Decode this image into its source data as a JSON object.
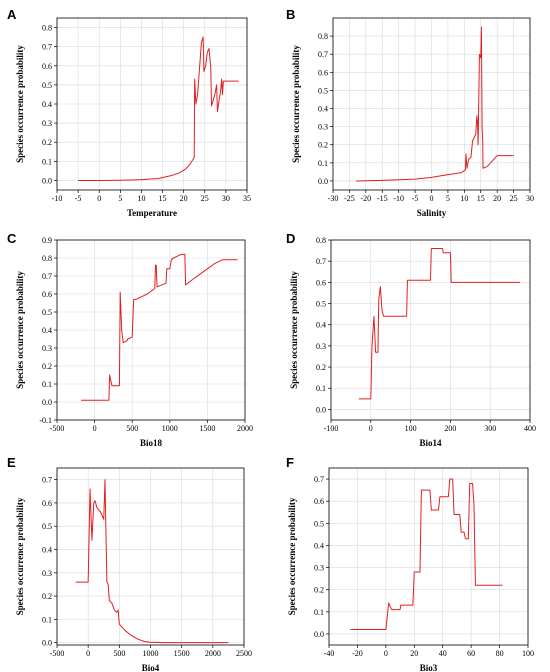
{
  "chart_data": [
    {
      "type": "line",
      "panel": "A",
      "xlabel": "Temperature",
      "ylabel": "Species occurrence probability",
      "xlim": [
        -10,
        35
      ],
      "ylim": [
        -0.05,
        0.85
      ],
      "xticks": [
        -10,
        -5,
        0,
        5,
        10,
        15,
        20,
        25,
        30,
        35
      ],
      "yticks": [
        0.0,
        0.1,
        0.2,
        0.3,
        0.4,
        0.5,
        0.6,
        0.7,
        0.8
      ],
      "grid": true,
      "color": "#e02020",
      "points": [
        [
          -5,
          0.0
        ],
        [
          0,
          0.0
        ],
        [
          5,
          0.001
        ],
        [
          10,
          0.004
        ],
        [
          14,
          0.01
        ],
        [
          17,
          0.025
        ],
        [
          19,
          0.04
        ],
        [
          20.5,
          0.06
        ],
        [
          21.5,
          0.085
        ],
        [
          22.5,
          0.12
        ],
        [
          22.6,
          0.53
        ],
        [
          22.9,
          0.4
        ],
        [
          23.3,
          0.45
        ],
        [
          23.8,
          0.6
        ],
        [
          24.2,
          0.72
        ],
        [
          24.6,
          0.75
        ],
        [
          24.8,
          0.57
        ],
        [
          25.2,
          0.6
        ],
        [
          25.6,
          0.67
        ],
        [
          26,
          0.69
        ],
        [
          26.4,
          0.6
        ],
        [
          26.6,
          0.39
        ],
        [
          27,
          0.42
        ],
        [
          27.4,
          0.45
        ],
        [
          27.8,
          0.5
        ],
        [
          28,
          0.36
        ],
        [
          28.4,
          0.42
        ],
        [
          28.7,
          0.46
        ],
        [
          29,
          0.53
        ],
        [
          29.2,
          0.45
        ],
        [
          29.4,
          0.52
        ],
        [
          30,
          0.52
        ],
        [
          33,
          0.52
        ]
      ]
    },
    {
      "type": "line",
      "panel": "B",
      "xlabel": "Salinity",
      "ylabel": "Species occurrence probability",
      "xlim": [
        -30,
        30
      ],
      "ylim": [
        -0.05,
        0.9
      ],
      "xticks": [
        -30,
        -25,
        -20,
        -15,
        -10,
        -5,
        0,
        5,
        10,
        15,
        20,
        25,
        30
      ],
      "yticks": [
        0.0,
        0.1,
        0.2,
        0.3,
        0.4,
        0.5,
        0.6,
        0.7,
        0.8
      ],
      "grid": true,
      "color": "#e02020",
      "points": [
        [
          -23,
          0.0
        ],
        [
          -15,
          0.003
        ],
        [
          -5,
          0.01
        ],
        [
          0,
          0.02
        ],
        [
          5,
          0.035
        ],
        [
          9,
          0.045
        ],
        [
          10.3,
          0.06
        ],
        [
          10.5,
          0.15
        ],
        [
          10.8,
          0.07
        ],
        [
          11.3,
          0.12
        ],
        [
          12,
          0.13
        ],
        [
          12.5,
          0.22
        ],
        [
          13,
          0.24
        ],
        [
          13.5,
          0.26
        ],
        [
          13.8,
          0.36
        ],
        [
          14,
          0.33
        ],
        [
          14.2,
          0.2
        ],
        [
          14.6,
          0.7
        ],
        [
          15,
          0.68
        ],
        [
          15.2,
          0.85
        ],
        [
          15.4,
          0.3
        ],
        [
          15.6,
          0.22
        ],
        [
          15.7,
          0.07
        ],
        [
          17,
          0.08
        ],
        [
          20,
          0.14
        ],
        [
          25,
          0.14
        ]
      ]
    },
    {
      "type": "line",
      "panel": "C",
      "xlabel": "Bio18",
      "ylabel": "Species occurrence probability",
      "xlim": [
        -500,
        2000
      ],
      "ylim": [
        -0.1,
        0.9
      ],
      "xticks": [
        -500,
        0,
        500,
        1000,
        1500,
        2000
      ],
      "yticks": [
        -0.1,
        0.0,
        0.1,
        0.2,
        0.3,
        0.4,
        0.5,
        0.6,
        0.7,
        0.8,
        0.9
      ],
      "grid": true,
      "color": "#e02020",
      "points": [
        [
          -180,
          0.01
        ],
        [
          190,
          0.01
        ],
        [
          200,
          0.15
        ],
        [
          230,
          0.09
        ],
        [
          330,
          0.09
        ],
        [
          340,
          0.61
        ],
        [
          360,
          0.4
        ],
        [
          380,
          0.33
        ],
        [
          430,
          0.34
        ],
        [
          440,
          0.35
        ],
        [
          500,
          0.36
        ],
        [
          520,
          0.57
        ],
        [
          550,
          0.57
        ],
        [
          700,
          0.6
        ],
        [
          800,
          0.63
        ],
        [
          810,
          0.76
        ],
        [
          820,
          0.76
        ],
        [
          830,
          0.64
        ],
        [
          950,
          0.66
        ],
        [
          960,
          0.74
        ],
        [
          1000,
          0.74
        ],
        [
          1020,
          0.79
        ],
        [
          1050,
          0.8
        ],
        [
          1100,
          0.81
        ],
        [
          1150,
          0.82
        ],
        [
          1200,
          0.82
        ],
        [
          1210,
          0.65
        ],
        [
          1300,
          0.68
        ],
        [
          1400,
          0.71
        ],
        [
          1500,
          0.74
        ],
        [
          1600,
          0.77
        ],
        [
          1700,
          0.79
        ],
        [
          1900,
          0.79
        ]
      ]
    },
    {
      "type": "line",
      "panel": "D",
      "xlabel": "Bio14",
      "ylabel": "Species occurrence probability",
      "xlim": [
        -100,
        400
      ],
      "ylim": [
        -0.05,
        0.8
      ],
      "xticks": [
        -100,
        0,
        100,
        200,
        300,
        400
      ],
      "yticks": [
        0.0,
        0.1,
        0.2,
        0.3,
        0.4,
        0.5,
        0.6,
        0.7,
        0.8
      ],
      "grid": true,
      "color": "#e02020",
      "points": [
        [
          -30,
          0.05
        ],
        [
          0,
          0.05
        ],
        [
          3,
          0.3
        ],
        [
          8,
          0.44
        ],
        [
          12,
          0.27
        ],
        [
          18,
          0.27
        ],
        [
          20,
          0.52
        ],
        [
          24,
          0.58
        ],
        [
          28,
          0.47
        ],
        [
          32,
          0.44
        ],
        [
          90,
          0.44
        ],
        [
          92,
          0.61
        ],
        [
          150,
          0.61
        ],
        [
          152,
          0.76
        ],
        [
          180,
          0.76
        ],
        [
          182,
          0.74
        ],
        [
          200,
          0.74
        ],
        [
          202,
          0.6
        ],
        [
          375,
          0.6
        ]
      ]
    },
    {
      "type": "line",
      "panel": "E",
      "xlabel": "Bio4",
      "ylabel": "Species occurrence probability",
      "xlim": [
        -500,
        2500
      ],
      "ylim": [
        -0.01,
        0.75
      ],
      "xticks": [
        -500,
        0,
        500,
        1000,
        1500,
        2000,
        2500
      ],
      "yticks": [
        0.0,
        0.1,
        0.2,
        0.3,
        0.4,
        0.5,
        0.6,
        0.7
      ],
      "grid": true,
      "color": "#e02020",
      "points": [
        [
          -200,
          0.26
        ],
        [
          0,
          0.26
        ],
        [
          30,
          0.66
        ],
        [
          60,
          0.44
        ],
        [
          90,
          0.6
        ],
        [
          110,
          0.61
        ],
        [
          140,
          0.58
        ],
        [
          200,
          0.56
        ],
        [
          250,
          0.53
        ],
        [
          270,
          0.7
        ],
        [
          300,
          0.26
        ],
        [
          320,
          0.25
        ],
        [
          340,
          0.18
        ],
        [
          380,
          0.17
        ],
        [
          420,
          0.14
        ],
        [
          460,
          0.13
        ],
        [
          480,
          0.14
        ],
        [
          500,
          0.08
        ],
        [
          600,
          0.05
        ],
        [
          700,
          0.03
        ],
        [
          800,
          0.015
        ],
        [
          900,
          0.005
        ],
        [
          1000,
          0.002
        ],
        [
          1200,
          0.0
        ],
        [
          1600,
          0.0
        ],
        [
          2000,
          0.0
        ],
        [
          2250,
          0.0
        ]
      ]
    },
    {
      "type": "line",
      "panel": "F",
      "xlabel": "Bio3",
      "ylabel": "Species occurrence probability",
      "xlim": [
        -40,
        100
      ],
      "ylim": [
        -0.05,
        0.75
      ],
      "xticks": [
        -40,
        -20,
        0,
        20,
        40,
        60,
        80,
        100
      ],
      "yticks": [
        0.0,
        0.1,
        0.2,
        0.3,
        0.4,
        0.5,
        0.6,
        0.7
      ],
      "grid": true,
      "color": "#e02020",
      "points": [
        [
          -25,
          0.02
        ],
        [
          0,
          0.02
        ],
        [
          2,
          0.14
        ],
        [
          4,
          0.11
        ],
        [
          10,
          0.11
        ],
        [
          10.5,
          0.13
        ],
        [
          19,
          0.13
        ],
        [
          20,
          0.28
        ],
        [
          24,
          0.28
        ],
        [
          25,
          0.65
        ],
        [
          31,
          0.65
        ],
        [
          32,
          0.56
        ],
        [
          37,
          0.56
        ],
        [
          38,
          0.62
        ],
        [
          44,
          0.62
        ],
        [
          45,
          0.7
        ],
        [
          47,
          0.7
        ],
        [
          48,
          0.54
        ],
        [
          52,
          0.54
        ],
        [
          53,
          0.46
        ],
        [
          55,
          0.46
        ],
        [
          56,
          0.43
        ],
        [
          58,
          0.43
        ],
        [
          59,
          0.68
        ],
        [
          61,
          0.68
        ],
        [
          62,
          0.58
        ],
        [
          63,
          0.22
        ],
        [
          82,
          0.22
        ]
      ]
    }
  ]
}
